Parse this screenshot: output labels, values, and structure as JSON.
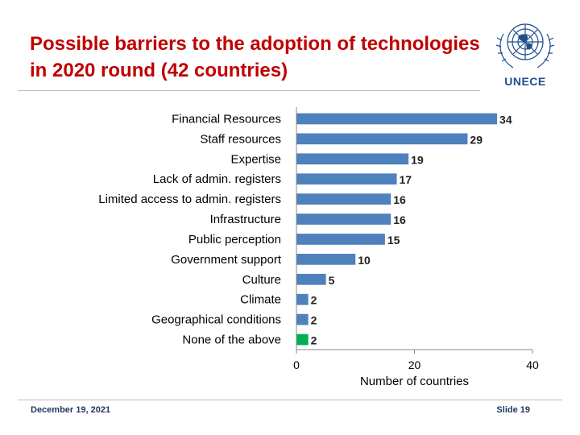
{
  "slide": {
    "title": "Possible barriers to the adoption of technologies in 2020 round (42 countries)",
    "logo_text": "UNECE",
    "footer_date": "December 19, 2021",
    "footer_slide": "Slide 19"
  },
  "colors": {
    "title": "#c00000",
    "bar": "#4f81bd",
    "highlight_bar": "#00b050",
    "logo": "#1f4e8c"
  },
  "icons": {
    "logo": "un-emblem-icon"
  },
  "chart_data": {
    "type": "bar",
    "orientation": "horizontal",
    "categories": [
      "Financial Resources",
      "Staff resources",
      "Expertise",
      "Lack of admin. registers",
      "Limited access to admin. registers",
      "Infrastructure",
      "Public perception",
      "Government support",
      "Culture",
      "Climate",
      "Geographical conditions",
      "None of the above"
    ],
    "values": [
      34,
      29,
      19,
      17,
      16,
      16,
      15,
      10,
      5,
      2,
      2,
      2
    ],
    "highlight_index": 11,
    "xlabel": "Number of countries",
    "ylabel": "",
    "xlim": [
      0,
      40
    ],
    "xticks": [
      0,
      20,
      40
    ],
    "data_labels": true,
    "grid": false,
    "legend": "none"
  }
}
